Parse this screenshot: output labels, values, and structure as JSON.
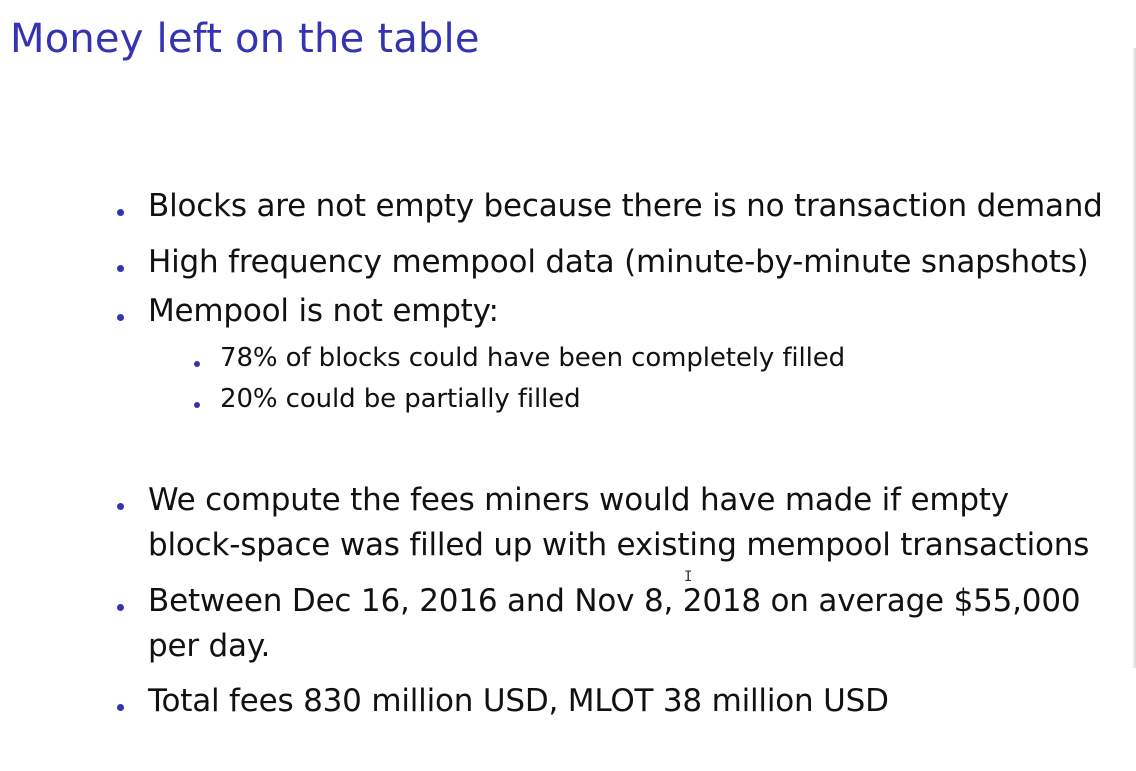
{
  "slide": {
    "title": "Money left on the table",
    "accent_color": "#3333b3",
    "bullets": [
      {
        "text": "Blocks are not empty because there is no transaction demand"
      },
      {
        "text": "High frequency mempool data (minute-by-minute snapshots)"
      },
      {
        "text": "Mempool is not empty:"
      },
      {
        "text": "78% of blocks could have been completely filled"
      },
      {
        "text": "20% could be partially filled"
      },
      {
        "line1": "We compute the fees miners would have made if empty",
        "line2": "block-space was filled up with existing mempool transactions"
      },
      {
        "line1": "Between Dec 16, 2016 and Nov 8, 2018 on average $55,000",
        "line2": "per day."
      },
      {
        "text": "Total fees 830 million USD, MLOT 38 million USD"
      }
    ]
  },
  "cursor": {
    "icon": "text-cursor-icon",
    "glyph": "I"
  }
}
